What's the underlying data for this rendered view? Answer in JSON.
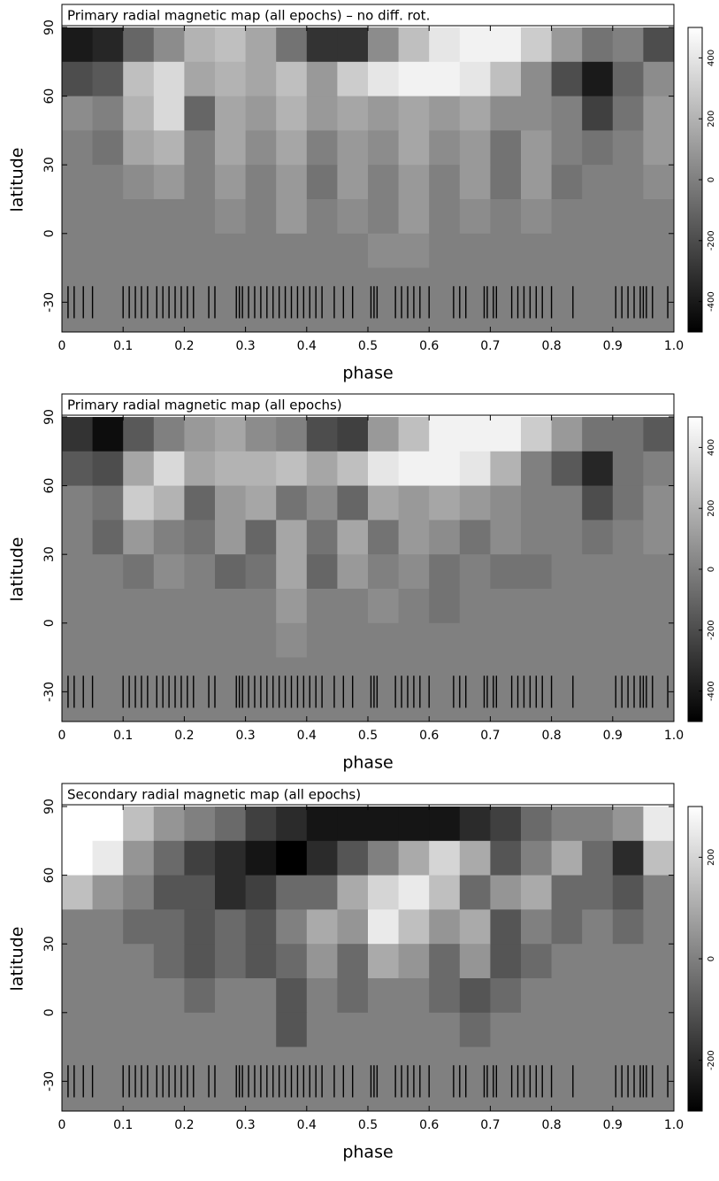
{
  "chart_data": [
    {
      "type": "heatmap",
      "title": "Primary radial magnetic map (all epochs) – no diff. rot.",
      "x_label": "phase",
      "y_label": "latitude",
      "xlim": [
        0,
        1
      ],
      "xticks": [
        0,
        0.1,
        0.2,
        0.3,
        0.4,
        0.5,
        0.6,
        0.7,
        0.8,
        0.9,
        {
          "value": 1,
          "label": "1.0"
        }
      ],
      "ylim": [
        -43,
        90
      ],
      "yticks": [
        -30,
        0,
        30,
        60,
        90
      ],
      "zlim": [
        -500,
        500
      ],
      "zticks": [
        -400,
        -200,
        0,
        200,
        400
      ],
      "xbins": [
        0,
        0.05,
        0.1,
        0.15,
        0.2,
        0.25,
        0.3,
        0.35,
        0.4,
        0.45,
        0.5,
        0.55,
        0.6,
        0.65,
        0.7,
        0.75,
        0.8,
        0.85,
        0.9,
        0.95,
        1
      ],
      "ybins": [
        90,
        75,
        60,
        45,
        30,
        15,
        0,
        -15,
        -30,
        -43
      ],
      "z": [
        [
          -400,
          -350,
          -100,
          50,
          200,
          250,
          150,
          -50,
          -300,
          -300,
          50,
          250,
          400,
          450,
          450,
          300,
          100,
          -50,
          0,
          -200
        ],
        [
          -200,
          -150,
          250,
          350,
          150,
          200,
          150,
          250,
          100,
          300,
          400,
          450,
          450,
          400,
          250,
          50,
          -200,
          -400,
          -100,
          50
        ],
        [
          50,
          0,
          200,
          350,
          -100,
          150,
          100,
          200,
          100,
          150,
          100,
          150,
          100,
          150,
          50,
          50,
          0,
          -250,
          -50,
          100
        ],
        [
          0,
          -50,
          150,
          200,
          0,
          150,
          50,
          150,
          0,
          100,
          50,
          150,
          50,
          100,
          -50,
          100,
          0,
          -50,
          0,
          100
        ],
        [
          0,
          0,
          50,
          100,
          0,
          100,
          0,
          100,
          -50,
          100,
          0,
          100,
          0,
          100,
          -50,
          100,
          -50,
          0,
          0,
          50
        ],
        [
          0,
          0,
          0,
          0,
          0,
          50,
          0,
          100,
          0,
          50,
          0,
          100,
          0,
          50,
          0,
          50,
          0,
          0,
          0,
          0
        ],
        [
          0,
          0,
          0,
          0,
          0,
          0,
          0,
          0,
          0,
          0,
          50,
          50,
          0,
          0,
          0,
          0,
          0,
          0,
          0,
          0
        ],
        [
          0,
          0,
          0,
          0,
          0,
          0,
          0,
          0,
          0,
          0,
          0,
          0,
          0,
          0,
          0,
          0,
          0,
          0,
          0,
          0
        ],
        [
          0,
          0,
          0,
          0,
          0,
          0,
          0,
          0,
          0,
          0,
          0,
          0,
          0,
          0,
          0,
          0,
          0,
          0,
          0,
          0
        ]
      ],
      "observations": [
        0.01,
        0.02,
        0.035,
        0.05,
        0.1,
        0.11,
        0.12,
        0.13,
        0.14,
        0.155,
        0.165,
        0.175,
        0.185,
        0.195,
        0.205,
        0.215,
        0.24,
        0.25,
        0.285,
        0.29,
        0.295,
        0.305,
        0.315,
        0.325,
        0.335,
        0.345,
        0.355,
        0.365,
        0.375,
        0.385,
        0.395,
        0.405,
        0.415,
        0.425,
        0.445,
        0.46,
        0.475,
        0.505,
        0.51,
        0.515,
        0.545,
        0.555,
        0.565,
        0.575,
        0.585,
        0.6,
        0.64,
        0.65,
        0.66,
        0.69,
        0.695,
        0.705,
        0.71,
        0.735,
        0.745,
        0.755,
        0.765,
        0.775,
        0.785,
        0.8,
        0.835,
        0.905,
        0.915,
        0.925,
        0.935,
        0.945,
        0.95,
        0.955,
        0.965,
        0.99
      ]
    },
    {
      "type": "heatmap",
      "title": "Primary radial magnetic map (all epochs)",
      "x_label": "phase",
      "y_label": "latitude",
      "xlim": [
        0,
        1
      ],
      "xticks": [
        0,
        0.1,
        0.2,
        0.3,
        0.4,
        0.5,
        0.6,
        0.7,
        0.8,
        0.9,
        {
          "value": 1,
          "label": "1.0"
        }
      ],
      "ylim": [
        -43,
        90
      ],
      "yticks": [
        -30,
        0,
        30,
        60,
        90
      ],
      "zlim": [
        -500,
        500
      ],
      "zticks": [
        -400,
        -200,
        0,
        200,
        400
      ],
      "xbins": [
        0,
        0.05,
        0.1,
        0.15,
        0.2,
        0.25,
        0.3,
        0.35,
        0.4,
        0.45,
        0.5,
        0.55,
        0.6,
        0.65,
        0.7,
        0.75,
        0.8,
        0.85,
        0.9,
        0.95,
        1
      ],
      "ybins": [
        90,
        75,
        60,
        45,
        30,
        15,
        0,
        -15,
        -30,
        -43
      ],
      "z": [
        [
          -300,
          -450,
          -150,
          0,
          100,
          150,
          50,
          0,
          -200,
          -250,
          100,
          250,
          450,
          450,
          450,
          300,
          100,
          -50,
          -50,
          -150
        ],
        [
          -150,
          -200,
          150,
          350,
          150,
          200,
          200,
          250,
          150,
          250,
          400,
          450,
          450,
          400,
          200,
          0,
          -150,
          -350,
          -50,
          0
        ],
        [
          0,
          -50,
          300,
          200,
          -100,
          100,
          150,
          -50,
          50,
          -100,
          150,
          100,
          150,
          100,
          50,
          0,
          0,
          -200,
          -50,
          50
        ],
        [
          0,
          -100,
          100,
          0,
          -50,
          100,
          -100,
          150,
          -50,
          150,
          -50,
          100,
          50,
          -50,
          50,
          0,
          0,
          -50,
          0,
          50
        ],
        [
          0,
          0,
          -50,
          50,
          0,
          -100,
          -50,
          150,
          -100,
          100,
          0,
          50,
          -50,
          0,
          -50,
          -50,
          0,
          0,
          0,
          0
        ],
        [
          0,
          0,
          0,
          0,
          0,
          0,
          0,
          100,
          0,
          0,
          50,
          0,
          -50,
          0,
          0,
          0,
          0,
          0,
          0,
          0
        ],
        [
          0,
          0,
          0,
          0,
          0,
          0,
          0,
          50,
          0,
          0,
          0,
          0,
          0,
          0,
          0,
          0,
          0,
          0,
          0,
          0
        ],
        [
          0,
          0,
          0,
          0,
          0,
          0,
          0,
          0,
          0,
          0,
          0,
          0,
          0,
          0,
          0,
          0,
          0,
          0,
          0,
          0
        ],
        [
          0,
          0,
          0,
          0,
          0,
          0,
          0,
          0,
          0,
          0,
          0,
          0,
          0,
          0,
          0,
          0,
          0,
          0,
          0,
          0
        ]
      ],
      "observations": [
        0.01,
        0.02,
        0.035,
        0.05,
        0.1,
        0.11,
        0.12,
        0.13,
        0.14,
        0.155,
        0.165,
        0.175,
        0.185,
        0.195,
        0.205,
        0.215,
        0.24,
        0.25,
        0.285,
        0.29,
        0.295,
        0.305,
        0.315,
        0.325,
        0.335,
        0.345,
        0.355,
        0.365,
        0.375,
        0.385,
        0.395,
        0.405,
        0.415,
        0.425,
        0.445,
        0.46,
        0.475,
        0.505,
        0.51,
        0.515,
        0.545,
        0.555,
        0.565,
        0.575,
        0.585,
        0.6,
        0.64,
        0.65,
        0.66,
        0.69,
        0.695,
        0.705,
        0.71,
        0.735,
        0.745,
        0.755,
        0.765,
        0.775,
        0.785,
        0.8,
        0.835,
        0.905,
        0.915,
        0.925,
        0.935,
        0.945,
        0.95,
        0.955,
        0.965,
        0.99
      ]
    },
    {
      "type": "heatmap",
      "title": "Secondary radial magnetic map (all epochs)",
      "x_label": "phase",
      "y_label": "latitude",
      "xlim": [
        0,
        1
      ],
      "xticks": [
        0,
        0.1,
        0.2,
        0.3,
        0.4,
        0.5,
        0.6,
        0.7,
        0.8,
        0.9,
        {
          "value": 1,
          "label": "1.0"
        }
      ],
      "ylim": [
        -43,
        90
      ],
      "yticks": [
        -30,
        0,
        30,
        60,
        90
      ],
      "zlim": [
        -300,
        300
      ],
      "zticks": [
        -200,
        0,
        200
      ],
      "xbins": [
        0,
        0.05,
        0.1,
        0.15,
        0.2,
        0.25,
        0.3,
        0.35,
        0.4,
        0.45,
        0.5,
        0.55,
        0.6,
        0.65,
        0.7,
        0.75,
        0.8,
        0.85,
        0.9,
        0.95,
        1
      ],
      "ybins": [
        90,
        75,
        60,
        45,
        30,
        15,
        0,
        -15,
        -30,
        -43
      ],
      "z": [
        [
          300,
          300,
          150,
          50,
          0,
          -50,
          -150,
          -200,
          -250,
          -250,
          -250,
          -250,
          -250,
          -200,
          -150,
          -50,
          0,
          0,
          50,
          250
        ],
        [
          300,
          250,
          50,
          -50,
          -150,
          -200,
          -250,
          -300,
          -200,
          -100,
          0,
          100,
          200,
          100,
          -100,
          0,
          100,
          -50,
          -200,
          150
        ],
        [
          150,
          50,
          0,
          -100,
          -100,
          -200,
          -150,
          -50,
          -50,
          100,
          200,
          250,
          150,
          -50,
          50,
          100,
          -50,
          -50,
          -100,
          0
        ],
        [
          0,
          0,
          -50,
          -50,
          -100,
          -50,
          -100,
          0,
          100,
          50,
          250,
          150,
          50,
          100,
          -100,
          0,
          -50,
          0,
          -50,
          0
        ],
        [
          0,
          0,
          0,
          -50,
          -100,
          -50,
          -100,
          -50,
          50,
          -50,
          100,
          50,
          -50,
          50,
          -100,
          -50,
          0,
          0,
          0,
          0
        ],
        [
          0,
          0,
          0,
          0,
          -50,
          0,
          0,
          -100,
          0,
          -50,
          0,
          0,
          -50,
          -100,
          -50,
          0,
          0,
          0,
          0,
          0
        ],
        [
          0,
          0,
          0,
          0,
          0,
          0,
          0,
          -100,
          0,
          0,
          0,
          0,
          0,
          -50,
          0,
          0,
          0,
          0,
          0,
          0
        ],
        [
          0,
          0,
          0,
          0,
          0,
          0,
          0,
          0,
          0,
          0,
          0,
          0,
          0,
          0,
          0,
          0,
          0,
          0,
          0,
          0
        ],
        [
          0,
          0,
          0,
          0,
          0,
          0,
          0,
          0,
          0,
          0,
          0,
          0,
          0,
          0,
          0,
          0,
          0,
          0,
          0,
          0
        ]
      ],
      "observations": [
        0.01,
        0.02,
        0.035,
        0.05,
        0.1,
        0.11,
        0.12,
        0.13,
        0.14,
        0.155,
        0.165,
        0.175,
        0.185,
        0.195,
        0.205,
        0.215,
        0.24,
        0.25,
        0.285,
        0.29,
        0.295,
        0.305,
        0.315,
        0.325,
        0.335,
        0.345,
        0.355,
        0.365,
        0.375,
        0.385,
        0.395,
        0.405,
        0.415,
        0.425,
        0.445,
        0.46,
        0.475,
        0.505,
        0.51,
        0.515,
        0.545,
        0.555,
        0.565,
        0.575,
        0.585,
        0.6,
        0.64,
        0.65,
        0.66,
        0.69,
        0.695,
        0.705,
        0.71,
        0.735,
        0.745,
        0.755,
        0.765,
        0.775,
        0.785,
        0.8,
        0.835,
        0.905,
        0.915,
        0.925,
        0.935,
        0.945,
        0.95,
        0.955,
        0.965,
        0.99
      ]
    }
  ]
}
